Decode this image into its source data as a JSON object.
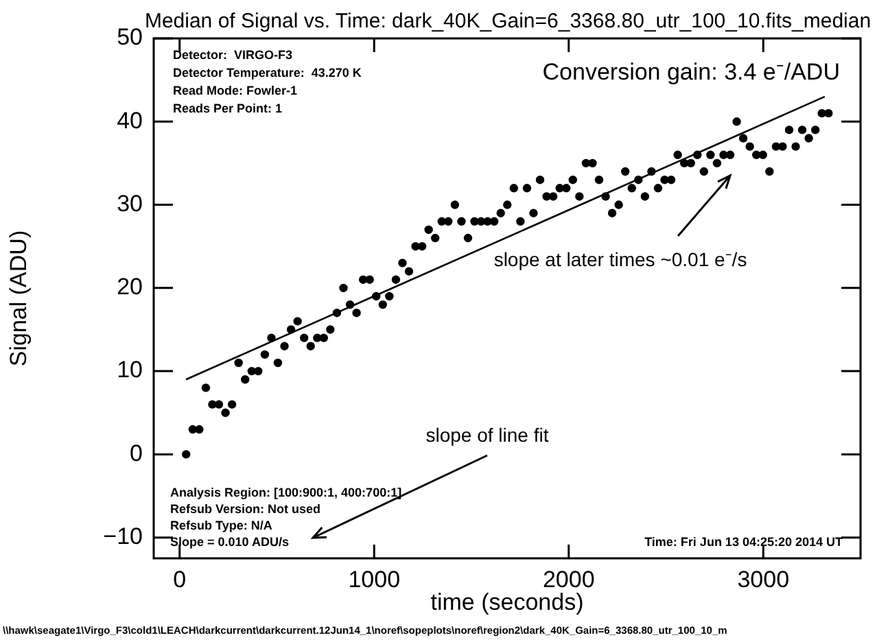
{
  "chart_data": {
    "type": "scatter",
    "title": "Median of Signal vs. Time: dark_40K_Gain=6_3368.80_utr_100_10.fits_median",
    "xlabel": "time (seconds)",
    "ylabel": "Signal (ADU)",
    "x": [
      33.7,
      67.4,
      101.1,
      134.8,
      168.4,
      202.1,
      235.8,
      269.5,
      303.2,
      336.9,
      370.6,
      404.3,
      438,
      471.6,
      505.3,
      539,
      572.7,
      606.4,
      640.1,
      673.8,
      707.4,
      741.1,
      774.8,
      808.5,
      842.2,
      875.9,
      909.6,
      943.3,
      977,
      1010.7,
      1044.3,
      1078,
      1111.7,
      1145.4,
      1179.1,
      1212.8,
      1246.5,
      1280.1,
      1313.8,
      1347.5,
      1381.2,
      1414.9,
      1448.6,
      1482.3,
      1516,
      1549.7,
      1583.3,
      1617,
      1650.7,
      1684.4,
      1718.1,
      1751.8,
      1785.5,
      1819.1,
      1852.8,
      1886.5,
      1920.2,
      1953.9,
      1987.6,
      2021.3,
      2055,
      2088.7,
      2122.3,
      2156,
      2189.7,
      2223.4,
      2257.1,
      2290.8,
      2324.5,
      2358.2,
      2391.8,
      2425.5,
      2459.2,
      2492.9,
      2526.6,
      2560.3,
      2594,
      2627.7,
      2661.3,
      2695,
      2728.7,
      2762.4,
      2796.1,
      2829.8,
      2863.5,
      2897.2,
      2930.9,
      2964.5,
      2998.2,
      3031.9,
      3065.6,
      3099.3,
      3133,
      3166.7,
      3200.3,
      3234,
      3267.7,
      3301.4,
      3335.1
    ],
    "series": [
      {
        "color": "#000000",
        "marker": "circle",
        "values": [
          0,
          3,
          3,
          8,
          6,
          6,
          5,
          6,
          11,
          9,
          10,
          10,
          12,
          14,
          11,
          13,
          15,
          16,
          14,
          13,
          14,
          14,
          15,
          17,
          20,
          18,
          17,
          21,
          21,
          19,
          18,
          19,
          21,
          23,
          22,
          25,
          25,
          27,
          26,
          28,
          28,
          30,
          28,
          26,
          28,
          28,
          28,
          28,
          29,
          30,
          32,
          28,
          32,
          29,
          33,
          31,
          31,
          32,
          32,
          33,
          31,
          35,
          35,
          33,
          31,
          29,
          30,
          34,
          32,
          33,
          31,
          34,
          32,
          33,
          33,
          36,
          35,
          35,
          36,
          34,
          36,
          35,
          36,
          36,
          40,
          38,
          37,
          36,
          36,
          34,
          37,
          37,
          39,
          37,
          39,
          38,
          39,
          41,
          41
        ]
      },
      {
        "type": "line",
        "color": "#000000",
        "x": [
          33,
          3316
        ],
        "values": [
          9,
          43
        ]
      }
    ],
    "xlim": [
      -133,
      3500
    ],
    "ylim": [
      -12.5,
      50
    ],
    "xticks": [
      0,
      1000,
      2000,
      3000
    ],
    "yticks": [
      -10,
      0,
      10,
      20,
      30,
      40,
      50
    ],
    "grid": false,
    "legend": false,
    "annotations": [
      "Detector:  VIRGO-F3",
      "Detector Temperature:  43.270 K",
      "Read Mode: Fowler-1",
      "Reads Per Point: 1",
      "Conversion gain: 3.4 e⁻/ADU",
      "slope at later times ~0.01 e⁻/s",
      "slope of line fit",
      "Analysis Region: [100:900:1, 400:700:1]",
      "Refsub Version: Not used",
      "Refsub Type: N/A",
      "Slope = 0.010 ADU/s",
      "Time: Fri Jun 13 04:25:20 2014 UT",
      "\\\\hawk\\seagate1\\Virgo_F3\\cold1\\LEACH\\darkcurrent\\darkcurrent.12Jun14_1\\noref\\sopeplots\\noref\\region2\\dark_40K_Gain=6_3368.80_utr_100_10_m"
    ]
  }
}
